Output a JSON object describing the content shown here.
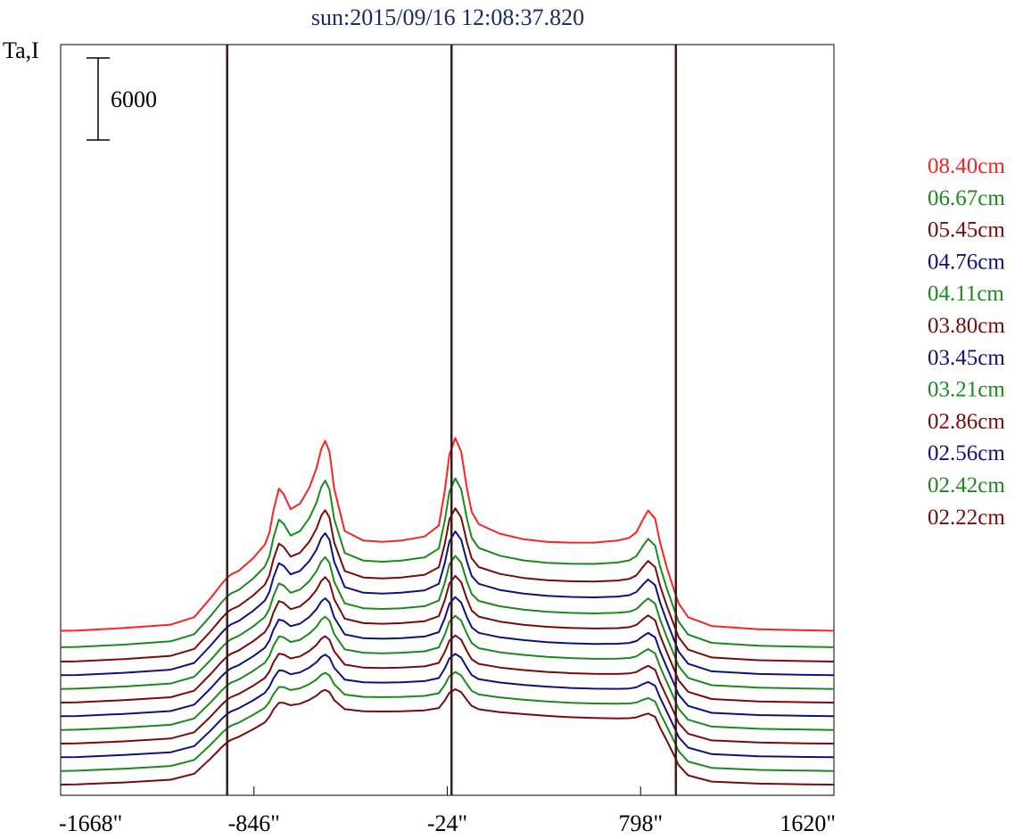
{
  "chart_data": {
    "type": "line",
    "title": "sun:2015/09/16 12:08:37.820",
    "ylabel": "Ta,I",
    "xlabel": "",
    "x_ticks": [
      {
        "value": -1668,
        "label": "-1668\""
      },
      {
        "value": -846,
        "label": "-846\""
      },
      {
        "value": -24,
        "label": "-24\""
      },
      {
        "value": 798,
        "label": "798\""
      },
      {
        "value": 1620,
        "label": "1620\""
      }
    ],
    "xlim": [
      -1668,
      1620
    ],
    "scale_bar": {
      "value": 6000,
      "label": "6000"
    },
    "vertical_lines": [
      -960,
      -6,
      948
    ],
    "grid": false,
    "legend_position": "right",
    "colors": {
      "red": "#ff2020",
      "green": "#1a8a1a",
      "darkred": "#7a0a0a",
      "navy": "#101080",
      "title": "#1c2a66",
      "marker": "#3a1a1a"
    },
    "x_points": [
      -1668,
      -1600,
      -1400,
      -1200,
      -1100,
      -1030,
      -985,
      -962,
      -945,
      -910,
      -850,
      -800,
      -780,
      -763,
      -740,
      -720,
      -690,
      -650,
      -610,
      -580,
      -560,
      -543,
      -525,
      -505,
      -460,
      -380,
      -300,
      -220,
      -120,
      -60,
      -35,
      -15,
      10,
      35,
      60,
      80,
      110,
      200,
      300,
      400,
      500,
      600,
      700,
      750,
      780,
      810,
      830,
      860,
      880,
      910,
      940,
      960,
      1000,
      1100,
      1300,
      1500,
      1620
    ],
    "series": [
      {
        "name": "08.40cm",
        "color": "#ff2020",
        "offset": 13450,
        "amp": 1.0
      },
      {
        "name": "06.67cm",
        "color": "#1a8a1a",
        "offset": 12250,
        "amp": 0.84
      },
      {
        "name": "05.45cm",
        "color": "#7a0a0a",
        "offset": 11200,
        "amp": 0.73
      },
      {
        "name": "04.76cm",
        "color": "#101080",
        "offset": 10200,
        "amp": 0.66
      },
      {
        "name": "04.11cm",
        "color": "#1a8a1a",
        "offset": 9200,
        "amp": 0.58
      },
      {
        "name": "03.80cm",
        "color": "#7a0a0a",
        "offset": 8200,
        "amp": 0.53
      },
      {
        "name": "03.45cm",
        "color": "#101080",
        "offset": 7200,
        "amp": 0.47
      },
      {
        "name": "03.21cm",
        "color": "#1a8a1a",
        "offset": 6200,
        "amp": 0.43
      },
      {
        "name": "02.86cm",
        "color": "#7a0a0a",
        "offset": 5200,
        "amp": 0.38
      },
      {
        "name": "02.56cm",
        "color": "#101080",
        "offset": 4200,
        "amp": 0.34
      },
      {
        "name": "02.42cm",
        "color": "#1a8a1a",
        "offset": 3200,
        "amp": 0.3
      },
      {
        "name": "02.22cm",
        "color": "#7a0a0a",
        "offset": 2200,
        "amp": 0.27
      }
    ],
    "profile_08_40": [
      0,
      20,
      200,
      450,
      1000,
      2400,
      3400,
      3850,
      4100,
      4400,
      5300,
      6300,
      7200,
      8800,
      10400,
      10000,
      8900,
      9300,
      10500,
      11900,
      13300,
      13900,
      13100,
      10400,
      7300,
      6600,
      6500,
      6600,
      6900,
      7700,
      10200,
      12900,
      14100,
      13100,
      10400,
      8700,
      7800,
      7100,
      6700,
      6500,
      6450,
      6450,
      6600,
      6800,
      7200,
      8200,
      8800,
      8200,
      6500,
      4600,
      3000,
      2000,
      1000,
      350,
      120,
      40,
      0
    ],
    "flat_profile": [
      0,
      20,
      200,
      450,
      1000,
      2400,
      3400,
      3850,
      4100,
      4400,
      5000,
      5500,
      5900,
      6200,
      6450,
      6600,
      6700,
      6750,
      6800,
      6800,
      6800,
      6800,
      6800,
      6800,
      6800,
      6800,
      6800,
      6800,
      6800,
      6800,
      6800,
      6800,
      6800,
      6800,
      6800,
      6700,
      6600,
      6500,
      6400,
      6250,
      6100,
      6000,
      5900,
      5850,
      5800,
      5750,
      5700,
      5500,
      4800,
      3800,
      2600,
      1700,
      800,
      250,
      80,
      20,
      0
    ]
  }
}
